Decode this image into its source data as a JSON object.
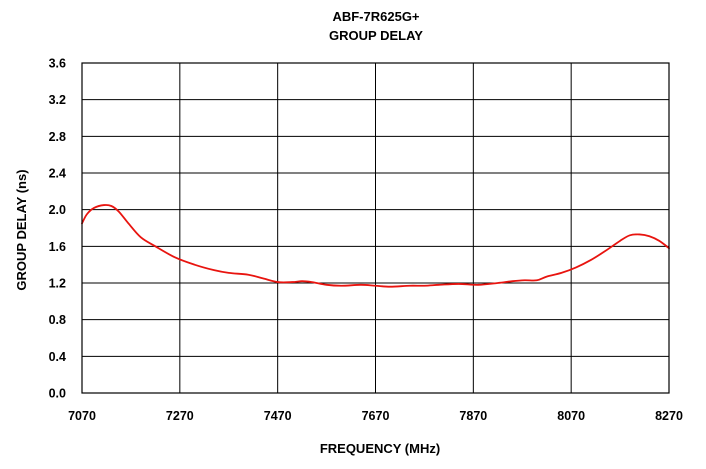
{
  "chart_data": {
    "type": "line",
    "title": "ABF-7R625G+",
    "subtitle": "GROUP DELAY",
    "xlabel": "FREQUENCY (MHz)",
    "ylabel": "GROUP DELAY (ns)",
    "xlim": [
      7070,
      8270
    ],
    "ylim": [
      0.0,
      3.6
    ],
    "x_ticks": [
      7070,
      7270,
      7470,
      7670,
      7870,
      8070,
      8270
    ],
    "x_tick_labels": [
      "7070",
      "7270",
      "7470",
      "7670",
      "7870",
      "8070",
      "8270"
    ],
    "y_ticks": [
      0.0,
      0.4,
      0.8,
      1.2,
      1.6,
      2.0,
      2.4,
      2.8,
      3.2,
      3.6
    ],
    "y_tick_labels": [
      "0.0",
      "0.4",
      "0.8",
      "1.2",
      "1.6",
      "2.0",
      "2.4",
      "2.8",
      "3.2",
      "3.6"
    ],
    "grid": true,
    "colors": {
      "series": "#e8140f",
      "grid": "#000000",
      "text": "#000000"
    },
    "series": [
      {
        "x": [
          7070,
          7080,
          7095,
          7115,
          7130,
          7145,
          7165,
          7190,
          7220,
          7260,
          7300,
          7340,
          7370,
          7410,
          7440,
          7470,
          7500,
          7520,
          7540,
          7570,
          7600,
          7640,
          7670,
          7700,
          7740,
          7770,
          7800,
          7840,
          7880,
          7920,
          7950,
          7975,
          8000,
          8020,
          8050,
          8080,
          8110,
          8140,
          8170,
          8190,
          8210,
          8230,
          8250,
          8270
        ],
        "y": [
          1.85,
          1.95,
          2.02,
          2.05,
          2.04,
          1.98,
          1.85,
          1.7,
          1.6,
          1.48,
          1.4,
          1.34,
          1.31,
          1.29,
          1.25,
          1.21,
          1.21,
          1.22,
          1.21,
          1.18,
          1.17,
          1.18,
          1.17,
          1.16,
          1.17,
          1.17,
          1.18,
          1.19,
          1.18,
          1.2,
          1.22,
          1.23,
          1.23,
          1.27,
          1.31,
          1.37,
          1.45,
          1.55,
          1.66,
          1.72,
          1.73,
          1.71,
          1.66,
          1.58
        ]
      }
    ]
  }
}
